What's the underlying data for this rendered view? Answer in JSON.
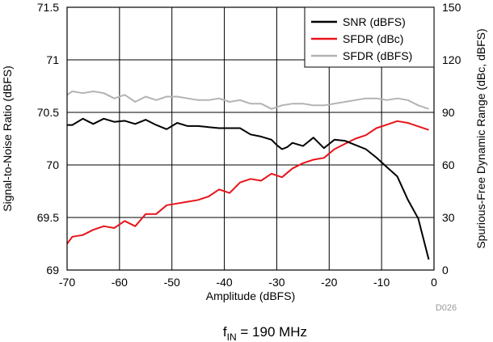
{
  "chart_data": {
    "type": "line",
    "xlabel": "Amplitude (dBFS)",
    "ylabel_left": "Signal-to-Noise Ratio (dBFS)",
    "ylabel_right": "Spurious-Free Dynamic Range (dBc, dBFS)",
    "xlim": [
      -70,
      0
    ],
    "ylim_left": [
      69,
      71.5
    ],
    "ylim_right": [
      0,
      150
    ],
    "x_ticks": [
      -70,
      -60,
      -50,
      -40,
      -30,
      -20,
      -10,
      0
    ],
    "y_left_ticks": [
      69,
      69.5,
      70,
      70.5,
      71,
      71.5
    ],
    "y_right_ticks": [
      0,
      30,
      60,
      90,
      120,
      150
    ],
    "grid": true,
    "legend_position": "top-right",
    "colors": {
      "snr": "#000000",
      "sfdr_dbc": "#e8141b",
      "sfdr_dbfs": "#b3b3b3"
    },
    "series": [
      {
        "name": "SNR (dBFS)",
        "axis": "left",
        "x": [
          -70,
          -69,
          -67,
          -65,
          -63,
          -61,
          -59,
          -57,
          -55,
          -53,
          -51,
          -49,
          -47,
          -45,
          -43,
          -41,
          -39,
          -37,
          -35,
          -33,
          -31,
          -30,
          -29,
          -28,
          -27,
          -25,
          -23,
          -21,
          -20,
          -19,
          -17,
          -15,
          -13,
          -11,
          -9,
          -7,
          -5,
          -3,
          -1
        ],
        "values": [
          70.38,
          70.38,
          70.44,
          70.39,
          70.44,
          70.41,
          70.42,
          70.39,
          70.43,
          70.38,
          70.34,
          70.4,
          70.37,
          70.37,
          70.36,
          70.35,
          70.35,
          70.35,
          70.29,
          70.27,
          70.24,
          70.19,
          70.15,
          70.17,
          70.21,
          70.18,
          70.26,
          70.16,
          70.2,
          70.24,
          70.23,
          70.19,
          70.15,
          70.07,
          69.98,
          69.89,
          69.67,
          69.49,
          69.1
        ]
      },
      {
        "name": "SFDR (dBc)",
        "axis": "right",
        "x": [
          -70,
          -69,
          -67,
          -65,
          -63,
          -61,
          -59,
          -57,
          -55,
          -53,
          -51,
          -49,
          -47,
          -45,
          -43,
          -41,
          -39,
          -37,
          -35,
          -33,
          -31,
          -29,
          -27,
          -25,
          -23,
          -21,
          -19,
          -17,
          -15,
          -13,
          -11,
          -9,
          -7,
          -5,
          -3,
          -1
        ],
        "values": [
          15,
          19,
          20,
          23,
          25,
          24,
          28,
          25,
          32,
          32,
          37,
          38,
          39,
          40,
          42,
          46,
          44,
          50,
          52,
          51,
          55,
          53,
          58,
          61,
          63,
          64,
          69,
          72,
          75,
          77,
          81,
          83,
          85,
          84,
          82,
          80
        ]
      },
      {
        "name": "SFDR (dBFS)",
        "axis": "right",
        "x": [
          -70,
          -69,
          -67,
          -65,
          -63,
          -61,
          -59,
          -57,
          -55,
          -53,
          -51,
          -49,
          -47,
          -45,
          -43,
          -41,
          -39,
          -37,
          -35,
          -33,
          -31,
          -29,
          -27,
          -25,
          -23,
          -21,
          -19,
          -17,
          -15,
          -13,
          -11,
          -9,
          -7,
          -5,
          -3,
          -1
        ],
        "values": [
          100,
          102,
          101,
          102,
          101,
          98,
          100,
          96,
          99,
          97,
          99,
          99,
          98,
          97,
          97,
          98,
          96,
          97,
          95,
          95,
          92,
          94,
          95,
          95,
          94,
          94,
          95,
          96,
          97,
          98,
          98,
          97,
          98,
          97,
          94,
          92
        ]
      }
    ],
    "code_label": "D026",
    "caption_main": "f",
    "caption_sub": "IN",
    "caption_rest": " = 190 MHz"
  }
}
